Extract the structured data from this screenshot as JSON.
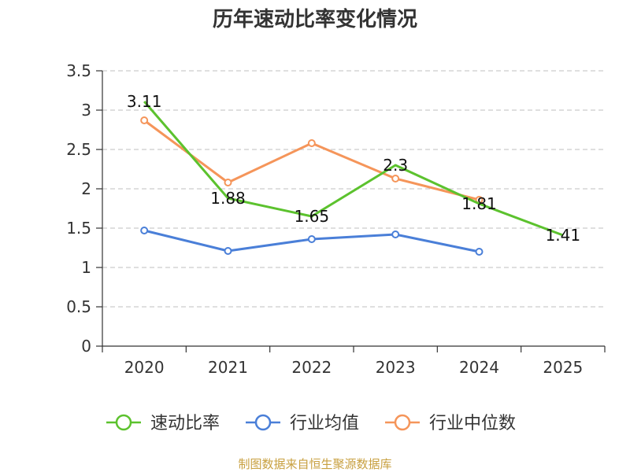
{
  "chart_data": {
    "type": "line",
    "title": "历年速动比率变化情况",
    "categories": [
      "2020",
      "2021",
      "2022",
      "2023",
      "2024",
      "2025"
    ],
    "ylim": [
      0,
      3.5
    ],
    "yticks": [
      0,
      0.5,
      1,
      1.5,
      2,
      2.5,
      3,
      3.5
    ],
    "ytick_labels": [
      "0",
      "0.5",
      "1",
      "1.5",
      "2",
      "2.5",
      "3",
      "3.5"
    ],
    "grid": true,
    "legend_position": "bottom",
    "series": [
      {
        "name": "速动比率",
        "color": "#5cc22e",
        "values": [
          3.11,
          1.88,
          1.65,
          2.3,
          1.81,
          1.41
        ],
        "labels": [
          "3.11",
          "1.88",
          "1.65",
          "2.3",
          "1.81",
          "1.41"
        ],
        "show_markers": false
      },
      {
        "name": "行业均值",
        "color": "#4a7fd8",
        "values": [
          1.47,
          1.21,
          1.36,
          1.42,
          1.2,
          null
        ],
        "show_markers": true
      },
      {
        "name": "行业中位数",
        "color": "#f5955a",
        "values": [
          2.87,
          2.08,
          2.58,
          2.13,
          1.86,
          null
        ],
        "show_markers": true
      }
    ]
  },
  "footer": {
    "source": "制图数据来自恒生聚源数据库"
  }
}
